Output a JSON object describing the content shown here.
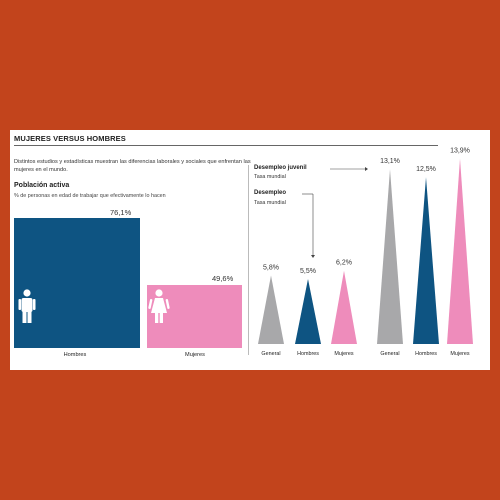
{
  "header": {
    "title": "MUJERES VERSUS HOMBRES",
    "intro": "Distintos estudios y estadísticas muestran las diferencias laborales y sociales que enfrentan las mujeres en el mundo."
  },
  "colors": {
    "background": "#C2441C",
    "hombres": "#0E5482",
    "mujeres": "#EE8CBB",
    "general": "#A8A8AA"
  },
  "chart_data": [
    {
      "type": "bar",
      "title": "Población activa",
      "subtitle": "% de personas en edad de trabajar que efectivamente lo hacen",
      "categories": [
        "Hombres",
        "Mujeres"
      ],
      "values": [
        76.1,
        49.6
      ],
      "labels": [
        "76,1%",
        "49,6%"
      ],
      "icons": [
        "man-icon",
        "woman-icon"
      ]
    },
    {
      "type": "bar",
      "title": "Desempleo",
      "subtitle": "Tasa mundial",
      "categories": [
        "General",
        "Hombres",
        "Mujeres"
      ],
      "values": [
        5.8,
        5.5,
        6.2
      ],
      "labels": [
        "5,8%",
        "5,5%",
        "6,2%"
      ]
    },
    {
      "type": "bar",
      "title": "Desempleo juvenil",
      "subtitle": "Tasa mundial",
      "categories": [
        "General",
        "Hombres",
        "Mujeres"
      ],
      "values": [
        13.1,
        12.5,
        13.9
      ],
      "labels": [
        "13,1%",
        "12,5%",
        "13,9%"
      ]
    }
  ]
}
